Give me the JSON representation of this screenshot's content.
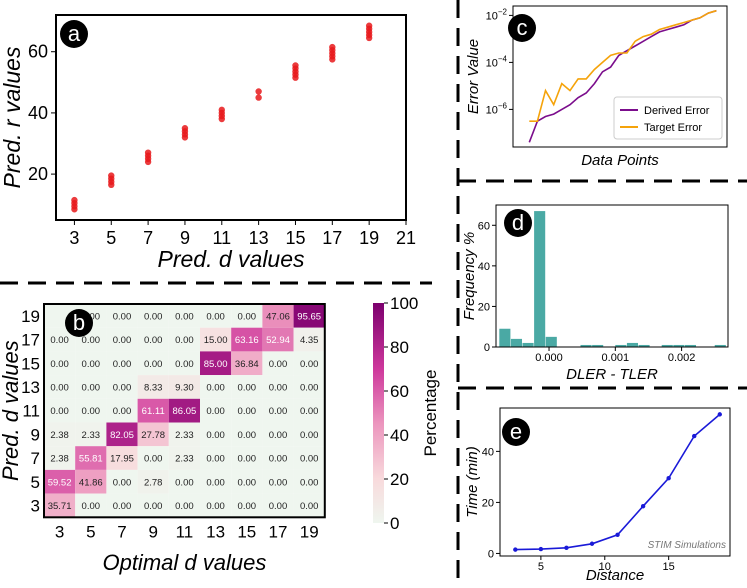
{
  "chart_data": [
    {
      "panel": "a",
      "type": "scatter",
      "xlabel": "Pred. d values",
      "ylabel": "Pred. r values",
      "xlim": [
        2,
        21
      ],
      "ylim": [
        5,
        72
      ],
      "xticks": [
        3,
        5,
        7,
        9,
        11,
        13,
        15,
        17,
        19,
        21
      ],
      "yticks": [
        20,
        40,
        60
      ],
      "color": "#e8191b",
      "points": [
        {
          "x": 3,
          "ys": [
            8.5,
            9.5,
            10.5,
            11.5
          ]
        },
        {
          "x": 5,
          "ys": [
            16.5,
            17.5,
            18.5,
            19.5
          ]
        },
        {
          "x": 7,
          "ys": [
            24,
            25,
            26,
            27
          ]
        },
        {
          "x": 9,
          "ys": [
            32,
            33,
            34,
            35
          ]
        },
        {
          "x": 11,
          "ys": [
            38,
            39,
            40,
            41
          ]
        },
        {
          "x": 13,
          "ys": [
            45,
            47
          ]
        },
        {
          "x": 15,
          "ys": [
            51.5,
            52.5,
            53.5,
            54.5,
            55.5
          ]
        },
        {
          "x": 17,
          "ys": [
            57.5,
            58.5,
            59.5,
            60.5,
            61.5
          ]
        },
        {
          "x": 19,
          "ys": [
            64.5,
            65.5,
            66.5,
            67.5,
            68.5
          ]
        }
      ]
    },
    {
      "panel": "b",
      "type": "heatmap",
      "xlabel": "Optimal d values",
      "ylabel": "Pred. d values",
      "x_categories": [
        "3",
        "5",
        "7",
        "9",
        "11",
        "13",
        "15",
        "17",
        "19"
      ],
      "y_categories": [
        "19",
        "17",
        "15",
        "13",
        "11",
        "9",
        "7",
        "5",
        "3"
      ],
      "values": [
        [
          null,
          0.0,
          0.0,
          0.0,
          0.0,
          0.0,
          0.0,
          47.06,
          95.65
        ],
        [
          0.0,
          0.0,
          0.0,
          0.0,
          0.0,
          15.0,
          63.16,
          52.94,
          4.35
        ],
        [
          0.0,
          0.0,
          0.0,
          0.0,
          0.0,
          85.0,
          36.84,
          0.0,
          0.0
        ],
        [
          0.0,
          0.0,
          0.0,
          8.33,
          9.3,
          0.0,
          0.0,
          0.0,
          0.0
        ],
        [
          0.0,
          0.0,
          0.0,
          61.11,
          86.05,
          0.0,
          0.0,
          0.0,
          0.0
        ],
        [
          2.38,
          2.33,
          82.05,
          27.78,
          2.33,
          0.0,
          0.0,
          0.0,
          0.0
        ],
        [
          2.38,
          55.81,
          17.95,
          0.0,
          2.33,
          0.0,
          0.0,
          0.0,
          0.0
        ],
        [
          59.52,
          41.86,
          0.0,
          2.78,
          0.0,
          0.0,
          0.0,
          0.0,
          0.0
        ],
        [
          35.71,
          0.0,
          0.0,
          0.0,
          0.0,
          0.0,
          0.0,
          0.0,
          0.0
        ]
      ],
      "colorbar_label": "Percentage",
      "colorbar_ticks": [
        0,
        20,
        40,
        60,
        80,
        100
      ],
      "colorbar_range": [
        0,
        100
      ]
    },
    {
      "panel": "c",
      "type": "line",
      "xlabel": "Data Points",
      "ylabel": "Error Value",
      "yscale": "log",
      "ylim_exp": [
        -7.6,
        -1.6
      ],
      "ytick_labels": [
        "10^-6",
        "10^-4",
        "10^-2"
      ],
      "ytick_exps": [
        -6,
        -4,
        -2
      ],
      "legend_position": "lower-right",
      "series": [
        {
          "name": "Derived Error",
          "color": "#7b0d8c",
          "values": [
            -7.4,
            -6.5,
            -6.3,
            -6.2,
            -6.0,
            -5.8,
            -5.5,
            -5.3,
            -4.9,
            -4.4,
            -4.2,
            -3.7,
            -3.5,
            -3.3,
            -3.1,
            -2.9,
            -2.7,
            -2.6,
            -2.5,
            -2.4,
            -2.2,
            -2.1,
            -1.9,
            -1.8
          ]
        },
        {
          "name": "Target Error",
          "color": "#f5a30a",
          "values": [
            -6.5,
            -6.5,
            -5.2,
            -5.8,
            -4.9,
            -5.2,
            -4.7,
            -4.7,
            -4.3,
            -4.0,
            -3.7,
            -3.6,
            -3.6,
            -3.1,
            -2.9,
            -2.8,
            -2.6,
            -2.5,
            -2.4,
            -2.3,
            -2.2,
            -2.1,
            -1.9,
            -1.8
          ]
        }
      ]
    },
    {
      "panel": "d",
      "type": "bar",
      "xlabel": "DLER - TLER",
      "ylabel": "Frequency %",
      "color": "#4aa9a4",
      "xlim": [
        -0.0008,
        0.0027
      ],
      "ylim": [
        0,
        70
      ],
      "xticks": [
        0.0,
        0.001,
        0.002
      ],
      "xtick_labels": [
        "0.000",
        "0.001",
        "0.002"
      ],
      "yticks": [
        0,
        20,
        40,
        60
      ],
      "bin_width": 0.000175,
      "bins": [
        {
          "left": -0.00075,
          "value": 9
        },
        {
          "left": -0.000575,
          "value": 4
        },
        {
          "left": -0.0004,
          "value": 2
        },
        {
          "left": -0.000225,
          "value": 67
        },
        {
          "left": -5e-05,
          "value": 5
        },
        {
          "left": 0.000475,
          "value": 1
        },
        {
          "left": 0.00065,
          "value": 1
        },
        {
          "left": 0.001,
          "value": 1
        },
        {
          "left": 0.001175,
          "value": 2
        },
        {
          "left": 0.00135,
          "value": 1
        },
        {
          "left": 0.0017,
          "value": 1
        },
        {
          "left": 0.001875,
          "value": 1
        },
        {
          "left": 0.00205,
          "value": 1
        },
        {
          "left": 0.0025,
          "value": 1
        }
      ]
    },
    {
      "panel": "e",
      "type": "line",
      "xlabel": "Distance",
      "ylabel": "Time (min)",
      "annotation": "STIM Simulations",
      "color": "#1a1ad8",
      "xlim": [
        1.8,
        19.8
      ],
      "ylim": [
        -1,
        57
      ],
      "xticks": [
        5,
        10,
        15
      ],
      "yticks": [
        0,
        20,
        40
      ],
      "x": [
        3,
        5,
        7,
        9,
        11,
        13,
        15,
        17,
        19
      ],
      "y": [
        1.5,
        1.7,
        2.2,
        3.8,
        7.3,
        18.5,
        29.5,
        46,
        54.5
      ]
    }
  ],
  "panel_letters": [
    "a",
    "b",
    "c",
    "d",
    "e"
  ]
}
